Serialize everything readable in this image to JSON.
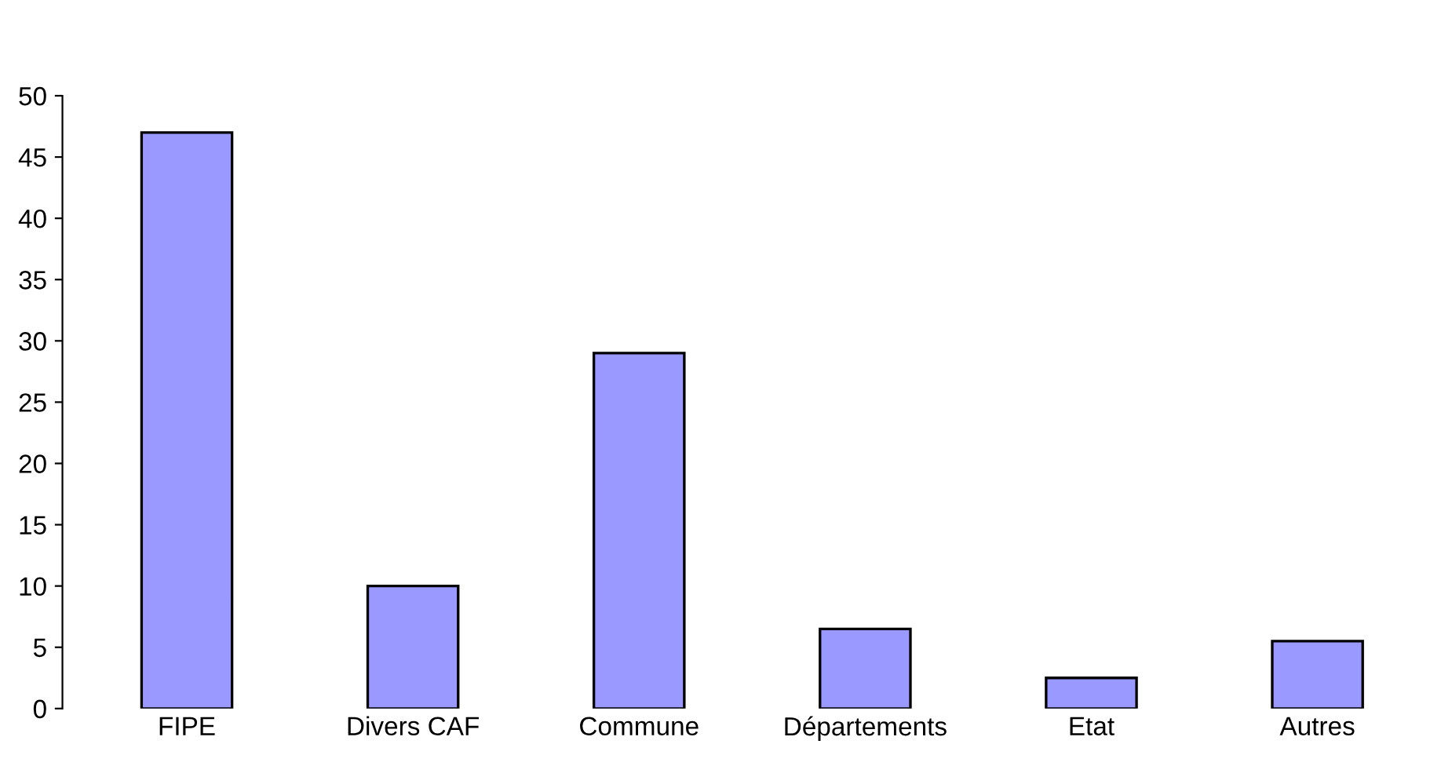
{
  "chart_data": {
    "type": "bar",
    "categories": [
      "FIPE",
      "Divers CAF",
      "Commune",
      "Départements",
      "Etat",
      "Autres"
    ],
    "values": [
      47,
      10,
      29,
      6.5,
      2.5,
      5.5
    ],
    "color": "#9999ff",
    "ylim": [
      0,
      50
    ],
    "yticks": [
      0,
      5,
      10,
      15,
      20,
      25,
      30,
      35,
      40,
      45,
      50
    ],
    "grid": false,
    "legend": false
  }
}
